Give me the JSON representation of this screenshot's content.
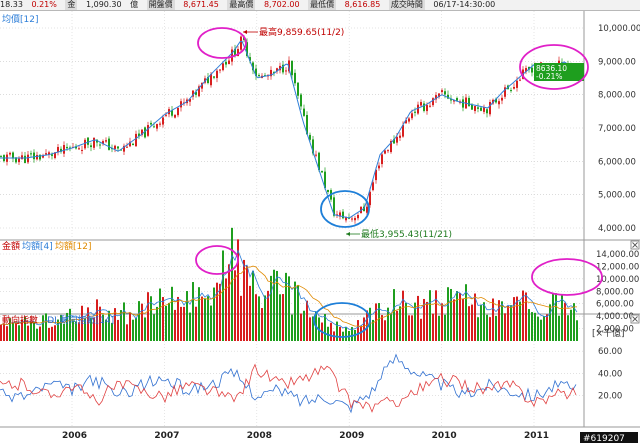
{
  "header": {
    "cells": [
      "18.33",
      "0.21%",
      "金",
      "1,090.30",
      "億",
      "開盤價",
      "8,671.45",
      "最高價",
      "8,702.00",
      "最低價",
      "8,616.85",
      "成交時間",
      "06/17-14:30:00"
    ]
  },
  "panels": {
    "price": {
      "legend": "均價[12]",
      "last_price": "8636.10",
      "last_change": "-0.21%"
    },
    "volume": {
      "legend_a": "金額",
      "legend_b": "均額[4]",
      "legend_c": "均額[12]",
      "unit": "[×千億]"
    },
    "dmi": {
      "legend_a": "動向指數",
      "legend_b": "-DI 動向指數[14]"
    }
  },
  "annotations": {
    "high": "最高9,859.65(11/2)",
    "low": "最低3,955.43(11/21)"
  },
  "x_labels": [
    "2006",
    "2007",
    "2008",
    "2009",
    "2010",
    "2011"
  ],
  "watermark": "#619207",
  "colors": {
    "up": "#d81e1e",
    "down": "#1e9e1e",
    "ma": "#2f7fd8",
    "ma12_vol": "#e08a00",
    "highlight_magenta": "#e020c8",
    "highlight_blue": "#1e7fd8"
  },
  "chart_data": [
    {
      "type": "line",
      "title": "",
      "x": [
        "2005-07",
        "2005-10",
        "2006-01",
        "2006-04",
        "2006-07",
        "2006-10",
        "2007-01",
        "2007-04",
        "2007-07",
        "2007-10",
        "2007-11",
        "2008-01",
        "2008-03",
        "2008-05",
        "2008-07",
        "2008-09",
        "2008-11",
        "2009-01",
        "2009-03",
        "2009-05",
        "2009-07",
        "2009-09",
        "2009-11",
        "2010-01",
        "2010-03",
        "2010-05",
        "2010-07",
        "2010-09",
        "2010-11",
        "2011-01",
        "2011-03",
        "2011-05",
        "2011-06"
      ],
      "series": [
        {
          "name": "均價[12]",
          "values": [
            6100,
            6200,
            6400,
            6650,
            6300,
            6800,
            7400,
            7800,
            8600,
            9300,
            9650,
            8500,
            8600,
            8950,
            7200,
            5800,
            4400,
            4300,
            4600,
            6200,
            6700,
            7500,
            7700,
            8000,
            7800,
            7700,
            7600,
            8100,
            8500,
            8900,
            8700,
            9000,
            8700
          ]
        }
      ],
      "ylim": [
        3600,
        10200
      ],
      "ticks": [
        "10,000.00",
        "9,000.00",
        "8,000.00",
        "7,000.00",
        "6,000.00",
        "5,000.00",
        "4,000.00"
      ]
    },
    {
      "type": "bar",
      "title": "",
      "ylabel": "[×千億]",
      "x": [
        "2005-07",
        "2005-10",
        "2006-01",
        "2006-04",
        "2006-07",
        "2006-10",
        "2007-01",
        "2007-04",
        "2007-07",
        "2007-10",
        "2008-01",
        "2008-04",
        "2008-07",
        "2008-10",
        "2009-01",
        "2009-04",
        "2009-07",
        "2009-10",
        "2010-01",
        "2010-04",
        "2010-07",
        "2010-10",
        "2011-01",
        "2011-04",
        "2011-06"
      ],
      "series": [
        {
          "name": "金額",
          "values": [
            3000,
            3600,
            4000,
            5000,
            4500,
            5600,
            6500,
            7000,
            9000,
            14500,
            7500,
            9000,
            6000,
            3000,
            1500,
            5000,
            6500,
            6500,
            6500,
            6800,
            5500,
            6500,
            6200,
            5800,
            5200
          ]
        }
      ],
      "ylim": [
        0,
        16000
      ],
      "ticks": [
        "14,000.00",
        "12,000.00",
        "10,000.00",
        "8,000.00",
        "6,000.00",
        "4,000.00",
        "2,000.00"
      ]
    },
    {
      "type": "line",
      "title": "",
      "x": [
        "2005-07",
        "2005-10",
        "2006-01",
        "2006-04",
        "2006-07",
        "2006-10",
        "2007-01",
        "2007-04",
        "2007-07",
        "2007-10",
        "2008-01",
        "2008-04",
        "2008-07",
        "2008-10",
        "2009-01",
        "2009-04",
        "2009-07",
        "2009-10",
        "2010-01",
        "2010-04",
        "2010-07",
        "2010-10",
        "2011-01",
        "2011-04",
        "2011-06"
      ],
      "series": [
        {
          "name": "",
          "values": [
            20,
            30,
            25,
            35,
            20,
            30,
            35,
            25,
            30,
            40,
            20,
            25,
            15,
            20,
            10,
            25,
            55,
            40,
            30,
            20,
            30,
            25,
            20,
            30,
            25
          ]
        },
        {
          "name": "-DI 動向指數[14]",
          "values": [
            30,
            20,
            30,
            15,
            30,
            25,
            20,
            30,
            25,
            15,
            45,
            30,
            35,
            45,
            15,
            10,
            15,
            25,
            35,
            30,
            25,
            30,
            15,
            20,
            25
          ]
        }
      ],
      "ylim": [
        0,
        70
      ],
      "ticks": [
        "60.00",
        "40.00",
        "20.00"
      ]
    }
  ]
}
